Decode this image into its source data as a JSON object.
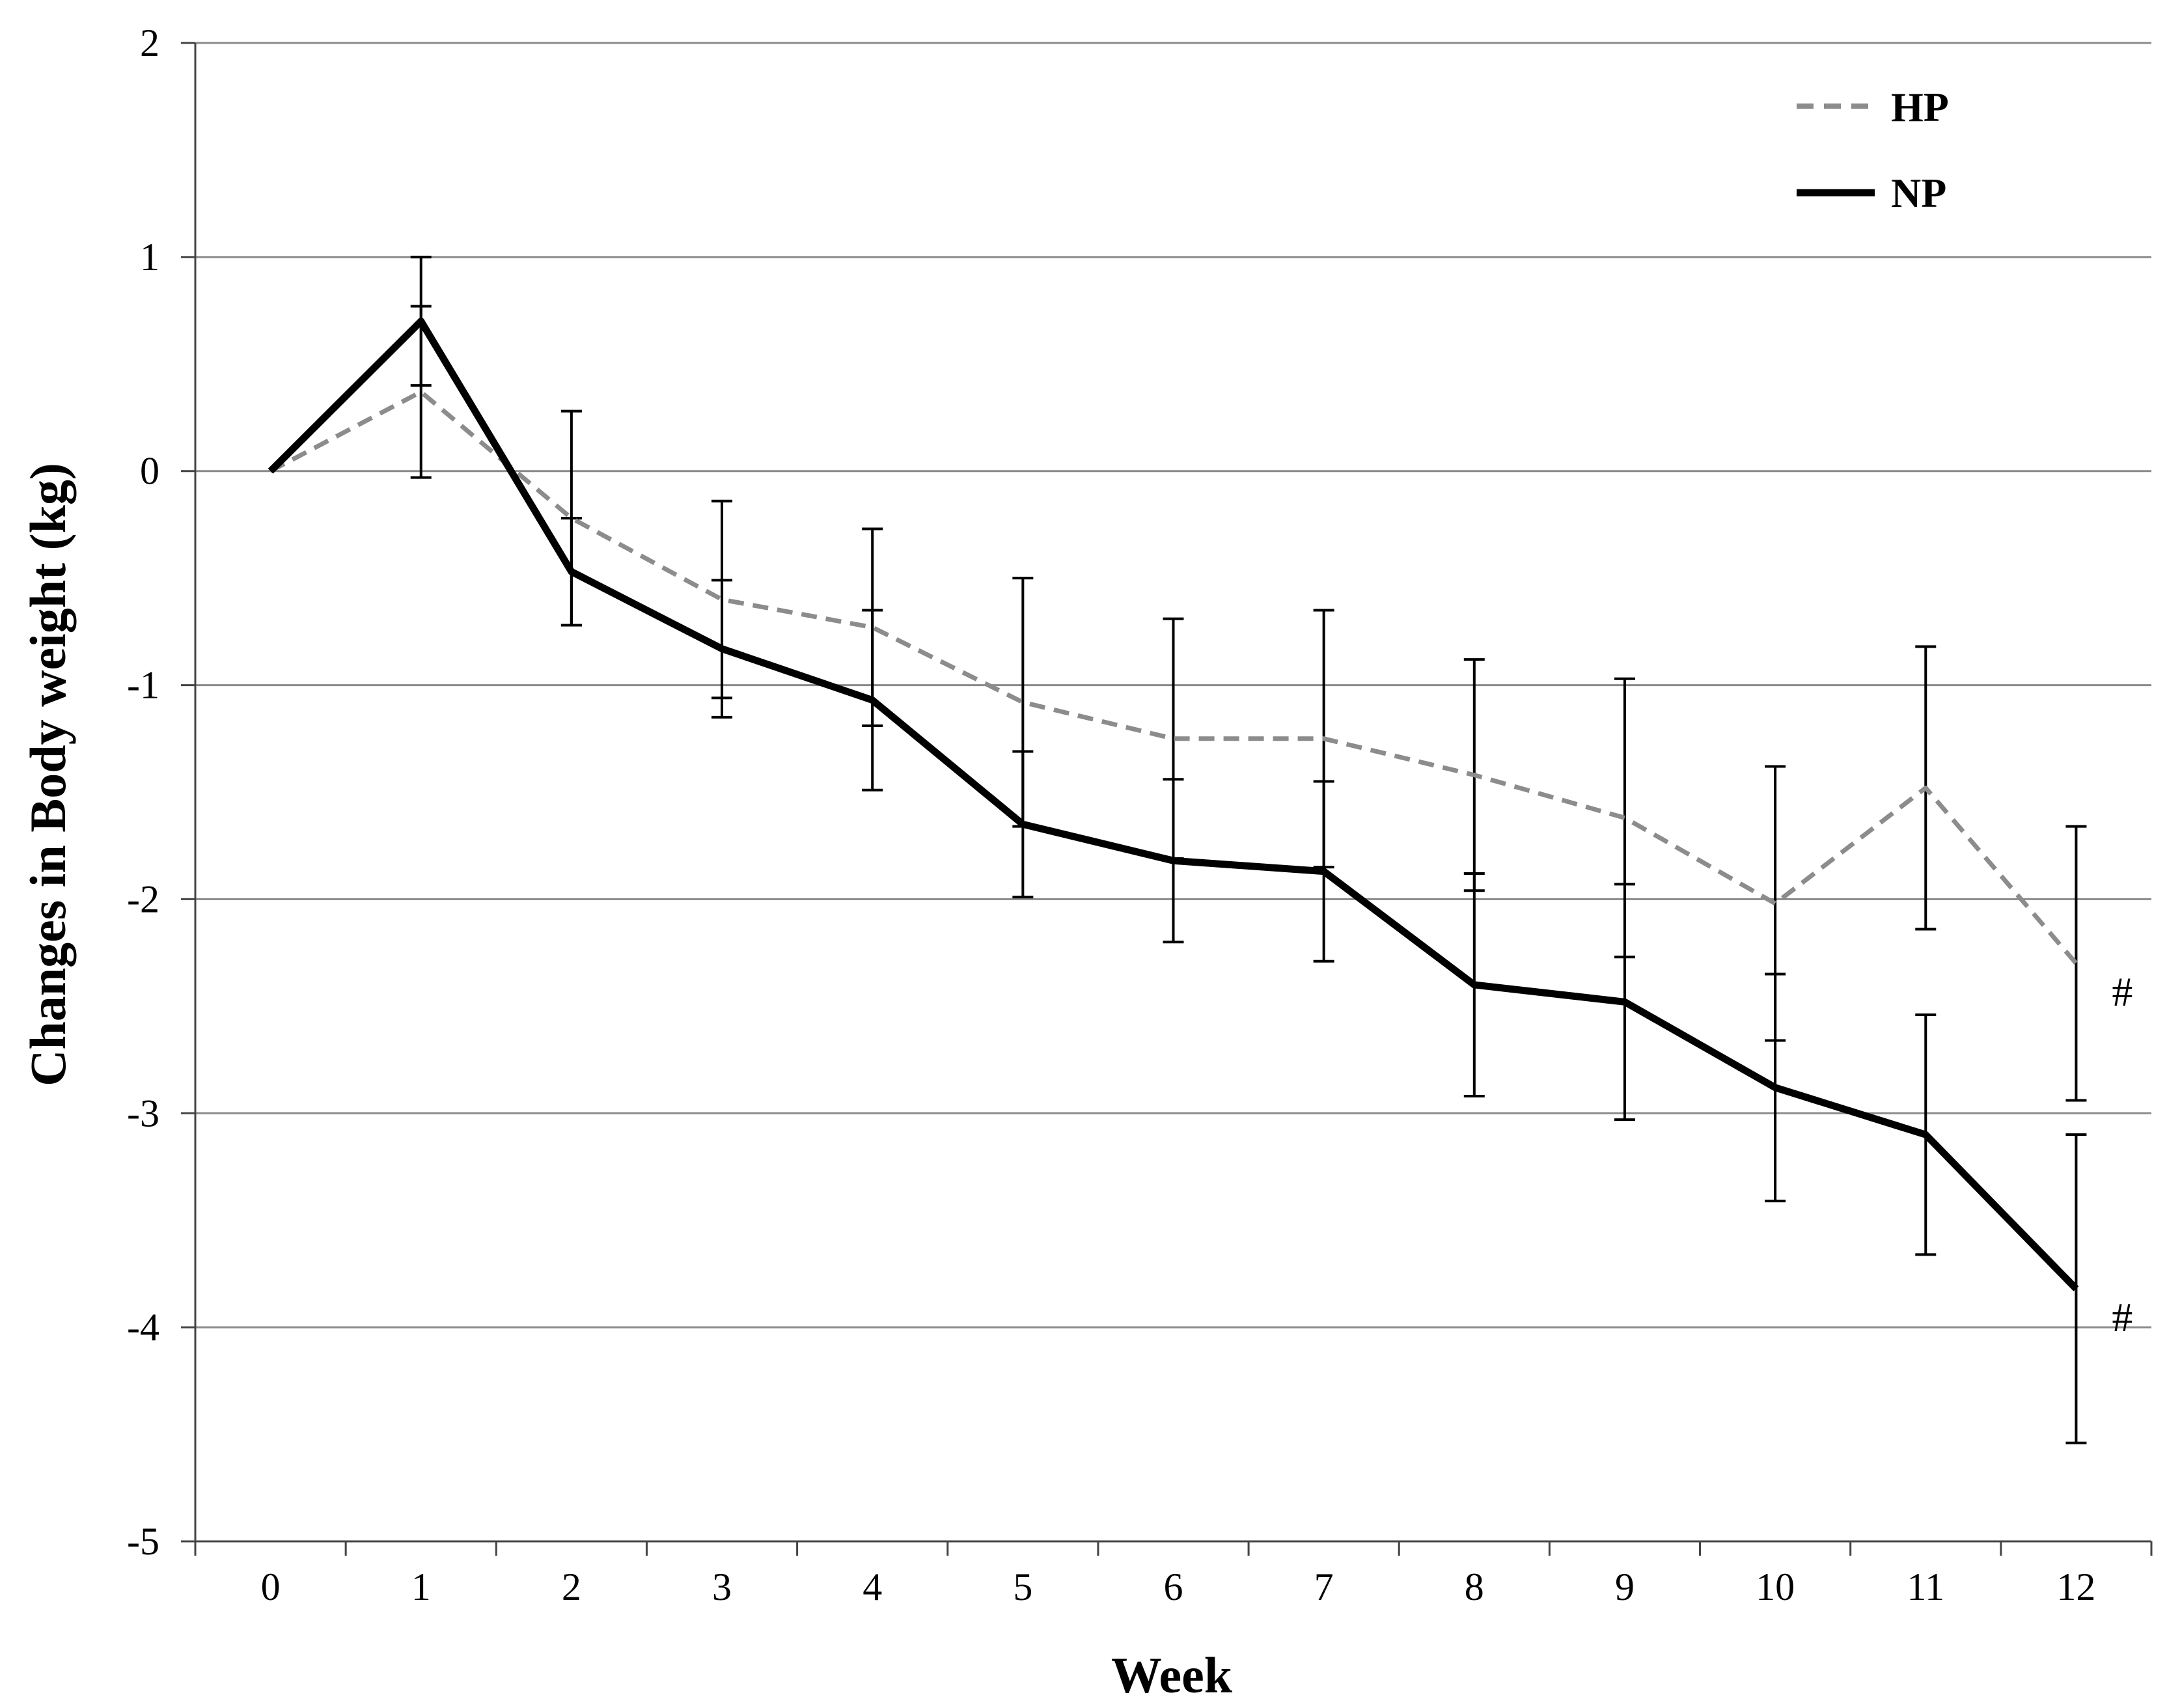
{
  "chart_data": {
    "type": "line",
    "title": "",
    "xlabel": "Week",
    "ylabel": "Changes in Body weight (kg)",
    "x": [
      0,
      1,
      2,
      3,
      4,
      5,
      6,
      7,
      8,
      9,
      10,
      11,
      12
    ],
    "xlim": [
      -0.5,
      12.5
    ],
    "ylim": [
      -5,
      2
    ],
    "yticks": [
      2,
      1,
      0,
      -1,
      -2,
      -3,
      -4,
      -5
    ],
    "grid": "horizontal",
    "legend_position": "top-right",
    "series": [
      {
        "name": "HP",
        "style": "dashed",
        "color": "#8c8c8c",
        "values": [
          0,
          0.37,
          -0.22,
          -0.6,
          -0.73,
          -1.08,
          -1.25,
          -1.25,
          -1.42,
          -1.62,
          -2.02,
          -1.48,
          -2.3
        ],
        "error": [
          0,
          0.4,
          0.5,
          0.46,
          0.46,
          0.58,
          0.56,
          0.6,
          0.54,
          0.65,
          0.64,
          0.66,
          0.64
        ]
      },
      {
        "name": "NP",
        "style": "solid",
        "color": "#000000",
        "values": [
          0,
          0.7,
          -0.47,
          -0.83,
          -1.07,
          -1.65,
          -1.82,
          -1.87,
          -2.4,
          -2.48,
          -2.88,
          -3.1,
          -3.82
        ],
        "error": [
          0,
          0.3,
          0.25,
          0.32,
          0.42,
          0.34,
          0.38,
          0.42,
          0.52,
          0.55,
          0.53,
          0.56,
          0.72
        ]
      }
    ],
    "annotations": [
      {
        "text": "#",
        "series": "HP",
        "x": 12
      },
      {
        "text": "#",
        "series": "NP",
        "x": 12
      }
    ]
  }
}
